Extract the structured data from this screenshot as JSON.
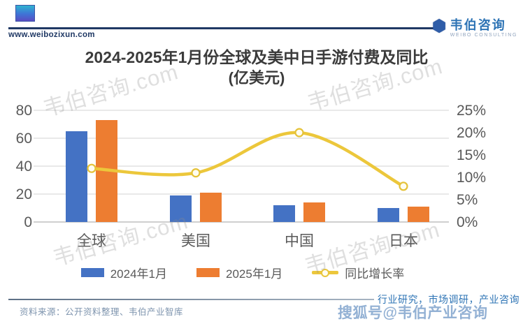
{
  "header": {
    "site_url": "www.weibozixun.com",
    "brand_name": "韦伯咨询",
    "brand_subtitle": "WEIBO CONSULTING",
    "logo": "hexagon-icon"
  },
  "chart_data": {
    "type": "bar",
    "combo": "bar+line",
    "title": "2024-2025年1月份全球及美中日手游付费及同比",
    "subtitle": "(亿美元)",
    "categories": [
      "全球",
      "美国",
      "中国",
      "日本"
    ],
    "series": [
      {
        "name": "2024年1月",
        "type": "bar",
        "color": "#4472C4",
        "values": [
          65,
          19,
          12,
          10
        ]
      },
      {
        "name": "2025年1月",
        "type": "bar",
        "color": "#ED7D31",
        "values": [
          73,
          21,
          14,
          11
        ]
      }
    ],
    "line_series": {
      "name": "同比增长率",
      "color": "#ECC73B",
      "marker_fill": "#FFFDF0",
      "values_pct": [
        12,
        11,
        20,
        8
      ]
    },
    "left_axis": {
      "ticks": [
        0,
        20,
        40,
        60,
        80
      ],
      "max": 80
    },
    "right_axis": {
      "ticks_pct": [
        0,
        5,
        10,
        15,
        20,
        25
      ],
      "max_pct": 25,
      "suffix": "%"
    },
    "grid": true,
    "legend_position": "bottom",
    "axis_text_color": "#595959"
  },
  "footer": {
    "source": "资料来源：公开资料整理、韦伯产业智库",
    "services": "行业研究，市场调研，产业咨询"
  },
  "watermarks": {
    "diagonal": "韦伯咨询.com",
    "sohu": "搜狐号@韦伯产业咨询"
  },
  "colors": {
    "bar_2024": "#4472C4",
    "bar_2025": "#ED7D31",
    "growth_line": "#ECC73B",
    "header_line": "#1F3864",
    "brand_blue": "#2E74B5"
  }
}
